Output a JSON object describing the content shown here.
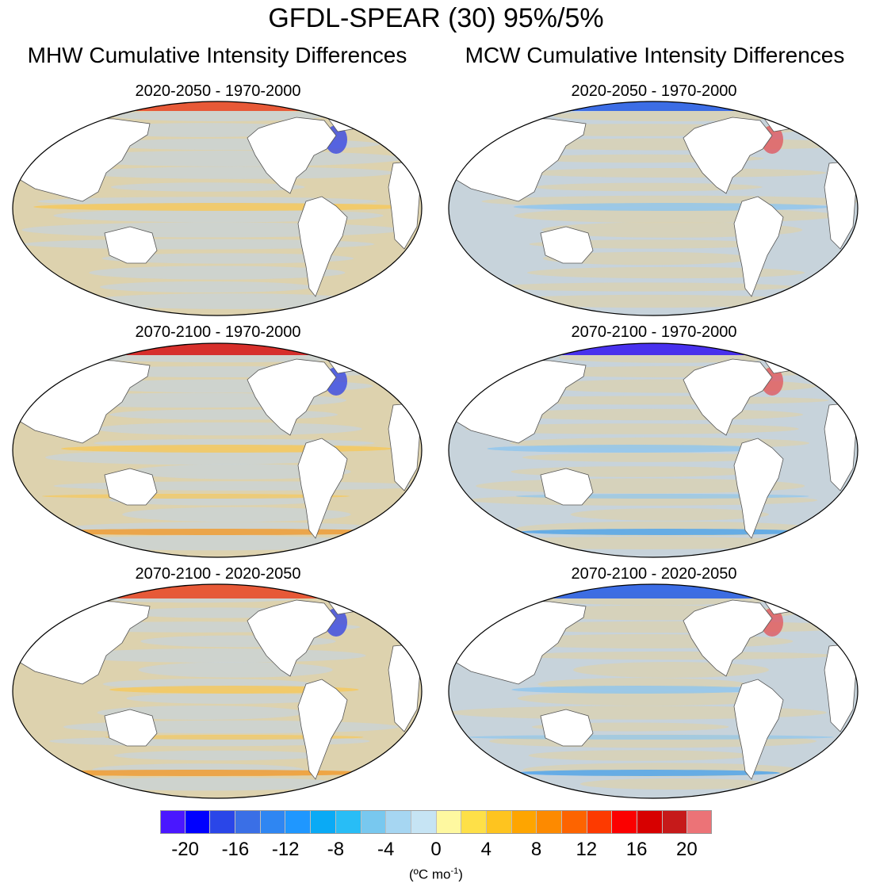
{
  "title": "GFDL-SPEAR (30) 95%/5%",
  "columns": [
    {
      "title": "MHW Cumulative Intensity Differences"
    },
    {
      "title": "MCW Cumulative Intensity Differences"
    }
  ],
  "panels": [
    {
      "title": "2020-2050 - 1970-2000",
      "column": "MHW"
    },
    {
      "title": "2020-2050 - 1970-2000",
      "column": "MCW"
    },
    {
      "title": "2070-2100 - 1970-2000",
      "column": "MHW"
    },
    {
      "title": "2070-2100 - 1970-2000",
      "column": "MCW"
    },
    {
      "title": "2070-2100 - 2020-2050",
      "column": "MHW"
    },
    {
      "title": "2070-2100 - 2020-2050",
      "column": "MCW"
    }
  ],
  "colorbar": {
    "ticks": [
      "-20",
      "-16",
      "-12",
      "-8",
      "-4",
      "0",
      "4",
      "8",
      "12",
      "16",
      "20"
    ],
    "units_prefix": "(ºC mo",
    "units_sup": "-1",
    "units_suffix": ")",
    "colors": [
      "#4a17ff",
      "#0000ff",
      "#2a46e8",
      "#3a6fe6",
      "#2f86f2",
      "#1f97ff",
      "#0aaaf5",
      "#28bdf6",
      "#78c8ef",
      "#a6d6f2",
      "#c6e4f4",
      "#fef8a0",
      "#fee048",
      "#fec41f",
      "#fea500",
      "#fd8a00",
      "#fd6400",
      "#fd3a00",
      "#fb0000",
      "#d70000",
      "#c61a1a",
      "#ec7377"
    ]
  },
  "map_colors": {
    "ocean_warm_tint": "#ddd2ae",
    "ocean_cool_tint": "#c7d3db",
    "land": "#ffffff",
    "coast": "#555555"
  }
}
